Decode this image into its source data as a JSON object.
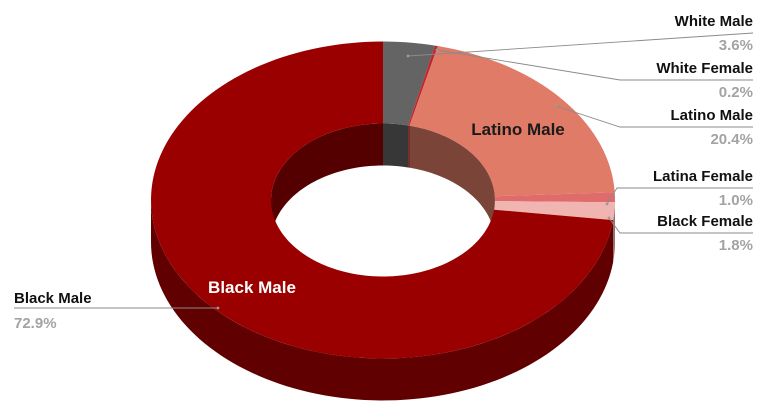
{
  "chart_data": {
    "type": "pie",
    "style": "3d-donut",
    "slices": [
      {
        "label": "White Male",
        "value": 3.6,
        "value_label": "3.6%",
        "color": "#646464"
      },
      {
        "label": "White Female",
        "value": 0.2,
        "value_label": "0.2%",
        "color": "#c0272d"
      },
      {
        "label": "Latino Male",
        "value": 20.4,
        "value_label": "20.4%",
        "color": "#e07b68",
        "inner_label": "Latino Male",
        "inner_label_color": "#1a1a1a"
      },
      {
        "label": "Latina Female",
        "value": 1.0,
        "value_label": "1.0%",
        "color": "#e06b6b"
      },
      {
        "label": "Black Female",
        "value": 1.8,
        "value_label": "1.8%",
        "color": "#f0b5b0"
      },
      {
        "label": "Black Male",
        "value": 72.9,
        "value_label": "72.9%",
        "color": "#9b0000",
        "inner_label": "Black Male",
        "inner_label_color": "#ffffff"
      }
    ],
    "start": "12 o'clock",
    "direction": "clockwise",
    "legend": "none"
  }
}
